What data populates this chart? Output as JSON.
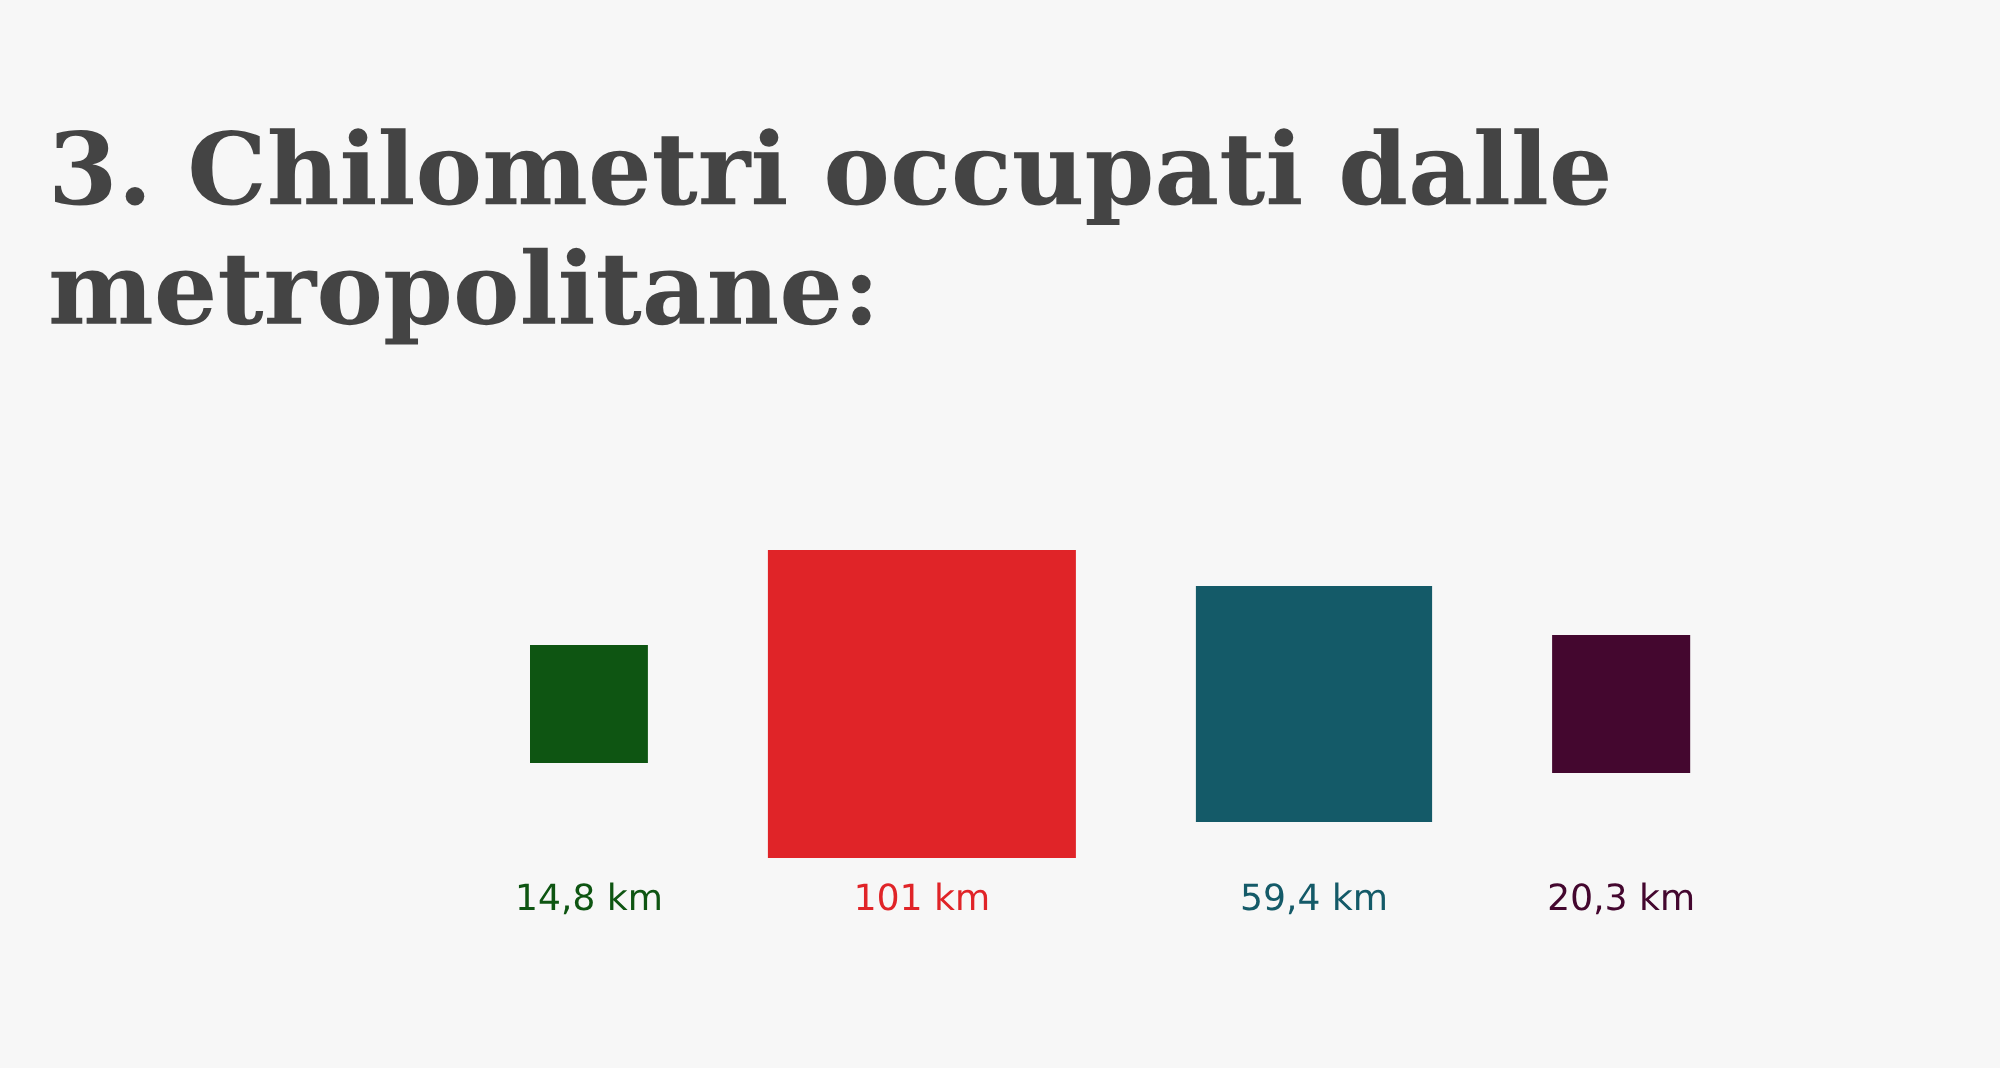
{
  "chart_data": {
    "type": "other",
    "title": "3. Chilometri occupati dalle metropolitane:",
    "categories": [
      null,
      null,
      null,
      null
    ],
    "values": [
      14.8,
      101,
      59.4,
      20.3
    ],
    "colors": [
      "#0e5512",
      "#e02428",
      "#145a68",
      "#44072f"
    ],
    "value_labels": [
      "14,8 km",
      "101 km",
      "59,4 km",
      "20,3 km"
    ]
  }
}
